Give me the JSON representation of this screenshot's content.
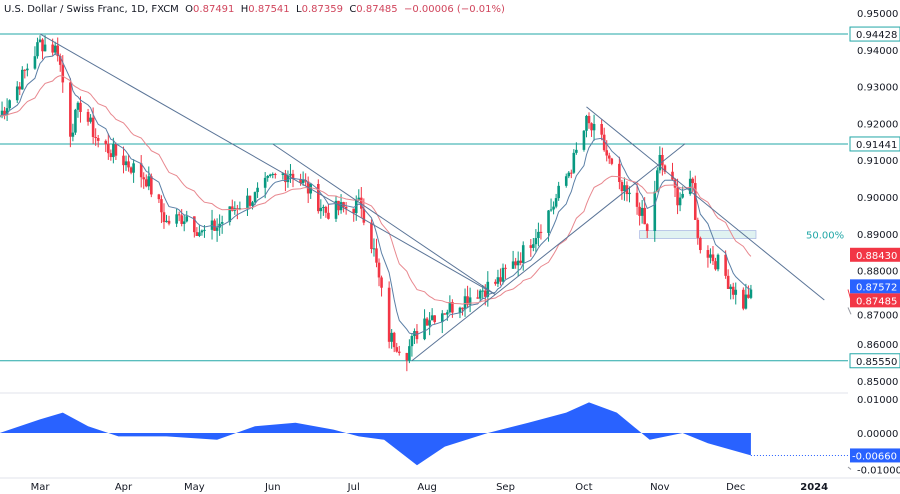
{
  "header": {
    "symbol": "U.S. Dollar / Swiss Franc, 1D, FXCM",
    "o_label": "O",
    "o": "0.87491",
    "h_label": "H",
    "h": "0.87541",
    "l_label": "L",
    "l": "0.87359",
    "c_label": "C",
    "c": "0.87485",
    "change": "−0.00006 (−0.01%)"
  },
  "chart_data": {
    "type": "candlestick",
    "ylim": [
      0.845,
      0.952
    ],
    "y_ticks": [
      "0.95000",
      "0.94000",
      "0.93000",
      "0.92000",
      "0.91000",
      "0.90000",
      "0.89000",
      "0.88000",
      "0.87000",
      "0.86000",
      "0.85000"
    ],
    "x_ticks": [
      {
        "label": "Mar",
        "date": "2023-03-01"
      },
      {
        "label": "Apr",
        "date": "2023-04-03"
      },
      {
        "label": "May",
        "date": "2023-05-01"
      },
      {
        "label": "Jun",
        "date": "2023-06-01"
      },
      {
        "label": "Jul",
        "date": "2023-07-03"
      },
      {
        "label": "Aug",
        "date": "2023-08-01"
      },
      {
        "label": "Sep",
        "date": "2023-09-01"
      },
      {
        "label": "Oct",
        "date": "2023-10-02"
      },
      {
        "label": "Nov",
        "date": "2023-11-01"
      },
      {
        "label": "Dec",
        "date": "2023-12-01"
      },
      {
        "label": "2024",
        "date": "2024-01-01"
      }
    ],
    "close_path": [
      [
        "2023-02-13",
        0.922
      ],
      [
        "2023-02-20",
        0.93
      ],
      [
        "2023-03-01",
        0.942
      ],
      [
        "2023-03-08",
        0.94
      ],
      [
        "2023-03-13",
        0.918
      ],
      [
        "2023-03-17",
        0.925
      ],
      [
        "2023-03-24",
        0.915
      ],
      [
        "2023-04-03",
        0.91
      ],
      [
        "2023-04-12",
        0.905
      ],
      [
        "2023-04-20",
        0.893
      ],
      [
        "2023-04-28",
        0.895
      ],
      [
        "2023-05-04",
        0.89
      ],
      [
        "2023-05-10",
        0.892
      ],
      [
        "2023-05-18",
        0.898
      ],
      [
        "2023-05-25",
        0.9
      ],
      [
        "2023-06-01",
        0.905
      ],
      [
        "2023-06-08",
        0.907
      ],
      [
        "2023-06-14",
        0.903
      ],
      [
        "2023-06-22",
        0.896
      ],
      [
        "2023-06-30",
        0.897
      ],
      [
        "2023-07-06",
        0.898
      ],
      [
        "2023-07-11",
        0.885
      ],
      [
        "2023-07-17",
        0.862
      ],
      [
        "2023-07-24",
        0.858
      ],
      [
        "2023-07-31",
        0.867
      ],
      [
        "2023-08-10",
        0.87
      ],
      [
        "2023-08-20",
        0.874
      ],
      [
        "2023-08-29",
        0.877
      ],
      [
        "2023-09-08",
        0.885
      ],
      [
        "2023-09-20",
        0.898
      ],
      [
        "2023-09-28",
        0.91
      ],
      [
        "2023-10-03",
        0.92
      ],
      [
        "2023-10-09",
        0.915
      ],
      [
        "2023-10-16",
        0.902
      ],
      [
        "2023-10-24",
        0.897
      ],
      [
        "2023-10-27",
        0.89
      ],
      [
        "2023-11-01",
        0.91
      ],
      [
        "2023-11-08",
        0.9
      ],
      [
        "2023-11-14",
        0.903
      ],
      [
        "2023-11-16",
        0.888
      ],
      [
        "2023-11-24",
        0.882
      ],
      [
        "2023-11-30",
        0.875
      ],
      [
        "2023-12-04",
        0.871
      ],
      [
        "2023-12-07",
        0.87485
      ]
    ],
    "price_levels": [
      {
        "label": "0.94428",
        "value": 0.94428
      },
      {
        "label": "0.91441",
        "value": 0.91441
      },
      {
        "label": "0.85550",
        "value": 0.8555
      }
    ],
    "trendlines": [
      [
        [
          "2023-03-01",
          0.9443
        ],
        [
          "2023-08-28",
          0.8735
        ]
      ],
      [
        [
          "2023-06-01",
          0.9144
        ],
        [
          "2023-08-28",
          0.8735
        ]
      ],
      [
        [
          "2023-07-26",
          0.8555
        ],
        [
          "2023-11-11",
          0.9145
        ]
      ],
      [
        [
          "2023-10-03",
          0.9245
        ],
        [
          "2024-01-05",
          0.872
        ]
      ]
    ],
    "fib": {
      "label": "50.00%",
      "value": 0.8898,
      "from": "2023-10-24",
      "to": "2023-12-09",
      "fill": "#e0f2f1"
    },
    "badges": [
      {
        "label": "0.88430",
        "value": 0.8843,
        "color": "#f23645"
      },
      {
        "label": "0.87572",
        "value": 0.87572,
        "color": "#2962ff"
      },
      {
        "label": "0.87485",
        "value": 0.87485,
        "color": "#f23645"
      }
    ],
    "ma_fast_color": "#5b7fa6",
    "ma_slow_color": "#e8888f",
    "oscillator": {
      "ylim": [
        -0.0115,
        0.0115
      ],
      "y_ticks": [
        "0.01000",
        "0.00000",
        "-0.01000"
      ],
      "badge": "-0.00660",
      "color": "#2962ff",
      "values": [
        [
          "2023-02-13",
          0.0
        ],
        [
          "2023-03-01",
          0.004
        ],
        [
          "2023-03-10",
          0.006
        ],
        [
          "2023-03-20",
          0.002
        ],
        [
          "2023-04-01",
          -0.001
        ],
        [
          "2023-04-20",
          -0.001
        ],
        [
          "2023-05-10",
          -0.002
        ],
        [
          "2023-05-25",
          0.002
        ],
        [
          "2023-06-10",
          0.003
        ],
        [
          "2023-06-25",
          0.001
        ],
        [
          "2023-07-05",
          -0.001
        ],
        [
          "2023-07-15",
          -0.002
        ],
        [
          "2023-07-28",
          -0.0095
        ],
        [
          "2023-08-08",
          -0.004
        ],
        [
          "2023-08-25",
          0.0
        ],
        [
          "2023-09-10",
          0.003
        ],
        [
          "2023-09-25",
          0.006
        ],
        [
          "2023-10-04",
          0.009
        ],
        [
          "2023-10-15",
          0.006
        ],
        [
          "2023-10-28",
          -0.002
        ],
        [
          "2023-11-10",
          0.0
        ],
        [
          "2023-11-20",
          -0.003
        ],
        [
          "2023-12-07",
          -0.0066
        ]
      ]
    },
    "colors": {
      "up": "#089981",
      "down": "#f23645",
      "line": "#5a7497",
      "level": "#22a7a7"
    }
  }
}
